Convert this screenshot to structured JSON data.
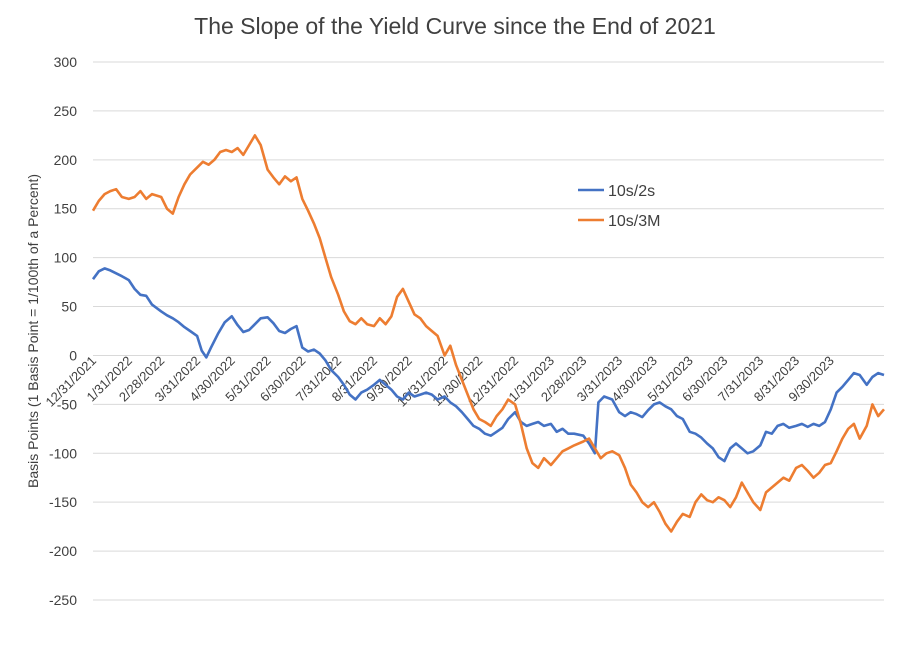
{
  "chart_data": {
    "type": "line",
    "title": "The Slope of the Yield Curve since the End of 2021",
    "ylabel": "Basis Points (1 Basis Point = 1/100th of a Percent)",
    "xlabel": "",
    "ylim": [
      -250,
      300
    ],
    "yticks": [
      300,
      250,
      200,
      150,
      100,
      50,
      0,
      -50,
      -100,
      -150,
      -200,
      -250
    ],
    "grid": true,
    "legend_position": "top-right",
    "x_tick_labels": [
      "12/31/2021",
      "1/31/2022",
      "2/28/2022",
      "3/31/2022",
      "4/30/2022",
      "5/31/2022",
      "6/30/2022",
      "7/31/2022",
      "8/31/2022",
      "9/30/2022",
      "10/31/2022",
      "11/30/2022",
      "12/31/2022",
      "1/31/2023",
      "2/28/2023",
      "3/31/2023",
      "4/30/2023",
      "5/31/2023",
      "6/30/2023",
      "7/31/2023",
      "8/31/2023",
      "9/30/2023"
    ],
    "x_range": [
      "12/31/2021",
      "11/15/2023"
    ],
    "series": [
      {
        "name": "10s/2s",
        "color": "#4472C4",
        "points": [
          [
            "12/31/2021",
            78
          ],
          [
            "1/5/2022",
            86
          ],
          [
            "1/10/2022",
            89
          ],
          [
            "1/15/2022",
            87
          ],
          [
            "1/20/2022",
            84
          ],
          [
            "1/25/2022",
            81
          ],
          [
            "1/31/2022",
            77
          ],
          [
            "2/5/2022",
            68
          ],
          [
            "2/10/2022",
            62
          ],
          [
            "2/15/2022",
            61
          ],
          [
            "2/20/2022",
            52
          ],
          [
            "2/28/2022",
            45
          ],
          [
            "3/5/2022",
            41
          ],
          [
            "3/10/2022",
            38
          ],
          [
            "3/15/2022",
            34
          ],
          [
            "3/20/2022",
            29
          ],
          [
            "3/25/2022",
            25
          ],
          [
            "3/31/2022",
            20
          ],
          [
            "4/4/2022",
            5
          ],
          [
            "4/8/2022",
            -2
          ],
          [
            "4/12/2022",
            8
          ],
          [
            "4/18/2022",
            22
          ],
          [
            "4/24/2022",
            34
          ],
          [
            "4/30/2022",
            40
          ],
          [
            "5/5/2022",
            31
          ],
          [
            "5/10/2022",
            24
          ],
          [
            "5/15/2022",
            26
          ],
          [
            "5/20/2022",
            32
          ],
          [
            "5/25/2022",
            38
          ],
          [
            "5/31/2022",
            39
          ],
          [
            "6/5/2022",
            33
          ],
          [
            "6/10/2022",
            25
          ],
          [
            "6/15/2022",
            23
          ],
          [
            "6/20/2022",
            27
          ],
          [
            "6/25/2022",
            30
          ],
          [
            "6/30/2022",
            8
          ],
          [
            "7/5/2022",
            4
          ],
          [
            "7/10/2022",
            6
          ],
          [
            "7/15/2022",
            2
          ],
          [
            "7/20/2022",
            -5
          ],
          [
            "7/25/2022",
            -15
          ],
          [
            "7/31/2022",
            -22
          ],
          [
            "8/5/2022",
            -30
          ],
          [
            "8/10/2022",
            -40
          ],
          [
            "8/15/2022",
            -45
          ],
          [
            "8/20/2022",
            -38
          ],
          [
            "8/25/2022",
            -35
          ],
          [
            "8/31/2022",
            -30
          ],
          [
            "9/5/2022",
            -25
          ],
          [
            "9/10/2022",
            -30
          ],
          [
            "9/15/2022",
            -35
          ],
          [
            "9/20/2022",
            -42
          ],
          [
            "9/25/2022",
            -45
          ],
          [
            "9/30/2022",
            -38
          ],
          [
            "10/5/2022",
            -42
          ],
          [
            "10/10/2022",
            -40
          ],
          [
            "10/15/2022",
            -38
          ],
          [
            "10/20/2022",
            -40
          ],
          [
            "10/25/2022",
            -45
          ],
          [
            "10/31/2022",
            -42
          ],
          [
            "11/5/2022",
            -48
          ],
          [
            "11/10/2022",
            -52
          ],
          [
            "11/15/2022",
            -58
          ],
          [
            "11/20/2022",
            -65
          ],
          [
            "11/25/2022",
            -72
          ],
          [
            "11/30/2022",
            -75
          ],
          [
            "12/5/2022",
            -80
          ],
          [
            "12/10/2022",
            -82
          ],
          [
            "12/15/2022",
            -78
          ],
          [
            "12/20/2022",
            -74
          ],
          [
            "12/25/2022",
            -65
          ],
          [
            "12/31/2022",
            -58
          ],
          [
            "1/5/2023",
            -68
          ],
          [
            "1/10/2023",
            -72
          ],
          [
            "1/15/2023",
            -70
          ],
          [
            "1/20/2023",
            -68
          ],
          [
            "1/25/2023",
            -72
          ],
          [
            "1/31/2023",
            -70
          ],
          [
            "2/5/2023",
            -78
          ],
          [
            "2/10/2023",
            -75
          ],
          [
            "2/15/2023",
            -80
          ],
          [
            "2/20/2023",
            -80
          ],
          [
            "2/28/2023",
            -82
          ],
          [
            "3/5/2023",
            -90
          ],
          [
            "3/10/2023",
            -100
          ],
          [
            "3/13/2023",
            -48
          ],
          [
            "3/18/2023",
            -42
          ],
          [
            "3/25/2023",
            -45
          ],
          [
            "3/31/2023",
            -58
          ],
          [
            "4/5/2023",
            -62
          ],
          [
            "4/10/2023",
            -58
          ],
          [
            "4/15/2023",
            -60
          ],
          [
            "4/20/2023",
            -63
          ],
          [
            "4/25/2023",
            -56
          ],
          [
            "4/30/2023",
            -50
          ],
          [
            "5/5/2023",
            -48
          ],
          [
            "5/10/2023",
            -52
          ],
          [
            "5/15/2023",
            -55
          ],
          [
            "5/20/2023",
            -62
          ],
          [
            "5/25/2023",
            -65
          ],
          [
            "5/31/2023",
            -78
          ],
          [
            "6/5/2023",
            -80
          ],
          [
            "6/10/2023",
            -84
          ],
          [
            "6/15/2023",
            -90
          ],
          [
            "6/20/2023",
            -95
          ],
          [
            "6/25/2023",
            -104
          ],
          [
            "6/30/2023",
            -108
          ],
          [
            "7/5/2023",
            -95
          ],
          [
            "7/10/2023",
            -90
          ],
          [
            "7/15/2023",
            -95
          ],
          [
            "7/20/2023",
            -100
          ],
          [
            "7/25/2023",
            -98
          ],
          [
            "7/31/2023",
            -92
          ],
          [
            "8/5/2023",
            -78
          ],
          [
            "8/10/2023",
            -80
          ],
          [
            "8/15/2023",
            -72
          ],
          [
            "8/20/2023",
            -70
          ],
          [
            "8/25/2023",
            -74
          ],
          [
            "8/31/2023",
            -72
          ],
          [
            "9/5/2023",
            -70
          ],
          [
            "9/10/2023",
            -73
          ],
          [
            "9/15/2023",
            -70
          ],
          [
            "9/20/2023",
            -72
          ],
          [
            "9/25/2023",
            -68
          ],
          [
            "9/30/2023",
            -55
          ],
          [
            "10/5/2023",
            -38
          ],
          [
            "10/10/2023",
            -32
          ],
          [
            "10/15/2023",
            -25
          ],
          [
            "10/20/2023",
            -18
          ],
          [
            "10/25/2023",
            -20
          ],
          [
            "10/31/2023",
            -30
          ],
          [
            "11/5/2023",
            -22
          ],
          [
            "11/10/2023",
            -18
          ],
          [
            "11/15/2023",
            -20
          ]
        ]
      },
      {
        "name": "10s/3M",
        "color": "#ED7D31",
        "points": [
          [
            "12/31/2021",
            148
          ],
          [
            "1/5/2022",
            158
          ],
          [
            "1/10/2022",
            165
          ],
          [
            "1/15/2022",
            168
          ],
          [
            "1/20/2022",
            170
          ],
          [
            "1/25/2022",
            162
          ],
          [
            "1/31/2022",
            160
          ],
          [
            "2/5/2022",
            162
          ],
          [
            "2/10/2022",
            168
          ],
          [
            "2/15/2022",
            160
          ],
          [
            "2/20/2022",
            165
          ],
          [
            "2/28/2022",
            162
          ],
          [
            "3/5/2022",
            150
          ],
          [
            "3/10/2022",
            145
          ],
          [
            "3/15/2022",
            162
          ],
          [
            "3/20/2022",
            175
          ],
          [
            "3/25/2022",
            185
          ],
          [
            "3/31/2022",
            192
          ],
          [
            "4/5/2022",
            198
          ],
          [
            "4/10/2022",
            195
          ],
          [
            "4/15/2022",
            200
          ],
          [
            "4/20/2022",
            208
          ],
          [
            "4/25/2022",
            210
          ],
          [
            "4/30/2022",
            208
          ],
          [
            "5/5/2022",
            212
          ],
          [
            "5/10/2022",
            205
          ],
          [
            "5/15/2022",
            215
          ],
          [
            "5/20/2022",
            225
          ],
          [
            "5/25/2022",
            215
          ],
          [
            "5/31/2022",
            190
          ],
          [
            "6/5/2022",
            182
          ],
          [
            "6/10/2022",
            175
          ],
          [
            "6/15/2022",
            183
          ],
          [
            "6/20/2022",
            178
          ],
          [
            "6/25/2022",
            182
          ],
          [
            "6/30/2022",
            160
          ],
          [
            "7/5/2022",
            148
          ],
          [
            "7/10/2022",
            135
          ],
          [
            "7/15/2022",
            120
          ],
          [
            "7/20/2022",
            100
          ],
          [
            "7/25/2022",
            80
          ],
          [
            "7/31/2022",
            62
          ],
          [
            "8/5/2022",
            45
          ],
          [
            "8/10/2022",
            35
          ],
          [
            "8/15/2022",
            32
          ],
          [
            "8/20/2022",
            38
          ],
          [
            "8/25/2022",
            32
          ],
          [
            "8/31/2022",
            30
          ],
          [
            "9/5/2022",
            38
          ],
          [
            "9/10/2022",
            32
          ],
          [
            "9/15/2022",
            40
          ],
          [
            "9/20/2022",
            60
          ],
          [
            "9/25/2022",
            68
          ],
          [
            "9/30/2022",
            55
          ],
          [
            "10/5/2022",
            42
          ],
          [
            "10/10/2022",
            38
          ],
          [
            "10/15/2022",
            30
          ],
          [
            "10/20/2022",
            25
          ],
          [
            "10/25/2022",
            20
          ],
          [
            "10/31/2022",
            0
          ],
          [
            "11/5/2022",
            10
          ],
          [
            "11/10/2022",
            -10
          ],
          [
            "11/15/2022",
            -25
          ],
          [
            "11/20/2022",
            -40
          ],
          [
            "11/25/2022",
            -55
          ],
          [
            "11/30/2022",
            -65
          ],
          [
            "12/5/2022",
            -68
          ],
          [
            "12/10/2022",
            -72
          ],
          [
            "12/15/2022",
            -62
          ],
          [
            "12/20/2022",
            -55
          ],
          [
            "12/25/2022",
            -45
          ],
          [
            "12/31/2022",
            -50
          ],
          [
            "1/5/2023",
            -70
          ],
          [
            "1/10/2023",
            -95
          ],
          [
            "1/15/2023",
            -110
          ],
          [
            "1/20/2023",
            -115
          ],
          [
            "1/25/2023",
            -105
          ],
          [
            "1/31/2023",
            -112
          ],
          [
            "2/5/2023",
            -105
          ],
          [
            "2/10/2023",
            -98
          ],
          [
            "2/15/2023",
            -95
          ],
          [
            "2/20/2023",
            -92
          ],
          [
            "2/28/2023",
            -88
          ],
          [
            "3/5/2023",
            -85
          ],
          [
            "3/10/2023",
            -95
          ],
          [
            "3/15/2023",
            -105
          ],
          [
            "3/20/2023",
            -100
          ],
          [
            "3/25/2023",
            -98
          ],
          [
            "3/31/2023",
            -102
          ],
          [
            "4/5/2023",
            -115
          ],
          [
            "4/10/2023",
            -132
          ],
          [
            "4/15/2023",
            -140
          ],
          [
            "4/20/2023",
            -150
          ],
          [
            "4/25/2023",
            -155
          ],
          [
            "4/30/2023",
            -150
          ],
          [
            "5/5/2023",
            -160
          ],
          [
            "5/10/2023",
            -172
          ],
          [
            "5/15/2023",
            -180
          ],
          [
            "5/20/2023",
            -170
          ],
          [
            "5/25/2023",
            -162
          ],
          [
            "5/31/2023",
            -165
          ],
          [
            "6/5/2023",
            -150
          ],
          [
            "6/10/2023",
            -142
          ],
          [
            "6/15/2023",
            -148
          ],
          [
            "6/20/2023",
            -150
          ],
          [
            "6/25/2023",
            -145
          ],
          [
            "6/30/2023",
            -148
          ],
          [
            "7/5/2023",
            -155
          ],
          [
            "7/10/2023",
            -145
          ],
          [
            "7/15/2023",
            -130
          ],
          [
            "7/20/2023",
            -140
          ],
          [
            "7/25/2023",
            -150
          ],
          [
            "7/31/2023",
            -158
          ],
          [
            "8/5/2023",
            -140
          ],
          [
            "8/10/2023",
            -135
          ],
          [
            "8/15/2023",
            -130
          ],
          [
            "8/20/2023",
            -125
          ],
          [
            "8/25/2023",
            -128
          ],
          [
            "8/31/2023",
            -115
          ],
          [
            "9/5/2023",
            -112
          ],
          [
            "9/10/2023",
            -118
          ],
          [
            "9/15/2023",
            -125
          ],
          [
            "9/20/2023",
            -120
          ],
          [
            "9/25/2023",
            -112
          ],
          [
            "9/30/2023",
            -110
          ],
          [
            "10/5/2023",
            -98
          ],
          [
            "10/10/2023",
            -85
          ],
          [
            "10/15/2023",
            -75
          ],
          [
            "10/20/2023",
            -70
          ],
          [
            "10/25/2023",
            -85
          ],
          [
            "10/31/2023",
            -72
          ],
          [
            "11/5/2023",
            -50
          ],
          [
            "11/10/2023",
            -62
          ],
          [
            "11/15/2023",
            -55
          ]
        ]
      }
    ]
  }
}
